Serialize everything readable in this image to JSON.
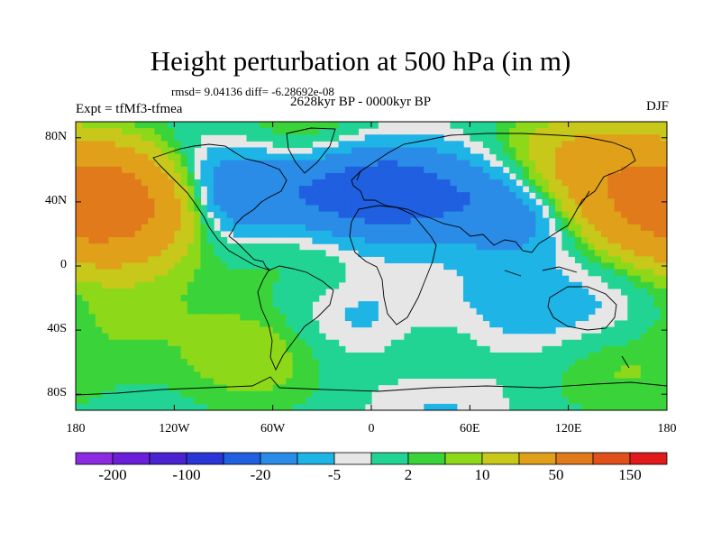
{
  "title": "Height perturbation at 500 hPa (in m)",
  "stats_text": "rmsd= 9.04136 diff= -6.28692e-08",
  "period_text": "2628kyr BP - 0000kyr BP",
  "experiment_text": "Expt = tfMf3-tfmea",
  "season_text": "DJF",
  "axes": {
    "lat_labels": [
      "80N",
      "40N",
      "0",
      "40S",
      "80S"
    ],
    "lat_values": [
      80,
      40,
      0,
      -40,
      -80
    ],
    "lon_labels": [
      "180",
      "120W",
      "60W",
      "0",
      "60E",
      "120E",
      "180"
    ],
    "lon_values": [
      -180,
      -120,
      -60,
      0,
      60,
      120,
      180
    ]
  },
  "colorbar": {
    "colors": [
      "#8b2ae0",
      "#6a1fd8",
      "#4a22d0",
      "#2a35d6",
      "#1f5fe0",
      "#2a8ce6",
      "#1eb4e6",
      "#e6e6e6",
      "#22d494",
      "#3ad43a",
      "#8ed81a",
      "#c8c81a",
      "#e0a01a",
      "#e07a1a",
      "#e0501a",
      "#e01a1a"
    ],
    "labels": [
      "-200",
      "-100",
      "-20",
      "-5",
      "2",
      "10",
      "50",
      "150"
    ]
  },
  "chart_data": {
    "type": "heatmap",
    "title": "Height perturbation at 500 hPa (in m)",
    "units": "m",
    "xlim": [
      -180,
      180
    ],
    "ylim": [
      -90,
      90
    ],
    "levels": [
      -200,
      -150,
      -100,
      -50,
      -20,
      -10,
      -5,
      -2,
      2,
      5,
      10,
      20,
      50,
      100,
      150
    ],
    "anomalies": [
      {
        "lon": -155,
        "lat": 38,
        "value": 70
      },
      {
        "lon": -95,
        "lat": 45,
        "value": -25
      },
      {
        "lon": -20,
        "lat": 45,
        "value": -15
      },
      {
        "lon": 15,
        "lat": 47,
        "value": -20
      },
      {
        "lon": 95,
        "lat": 40,
        "value": -25
      },
      {
        "lon": 165,
        "lat": 42,
        "value": 30
      },
      {
        "lon": 125,
        "lat": 60,
        "value": 30
      },
      {
        "lon": -40,
        "lat": 82,
        "value": 8
      },
      {
        "lon": -45,
        "lat": 12,
        "value": 6
      },
      {
        "lon": -158,
        "lat": -25,
        "value": 7
      },
      {
        "lon": -70,
        "lat": -55,
        "value": 9
      },
      {
        "lon": -10,
        "lat": -35,
        "value": -8
      },
      {
        "lon": 35,
        "lat": -58,
        "value": 7
      },
      {
        "lon": 85,
        "lat": -28,
        "value": -7
      },
      {
        "lon": 150,
        "lat": -30,
        "value": -7
      },
      {
        "lon": 150,
        "lat": -60,
        "value": 7
      },
      {
        "lon": 40,
        "lat": -82,
        "value": -8
      }
    ]
  }
}
